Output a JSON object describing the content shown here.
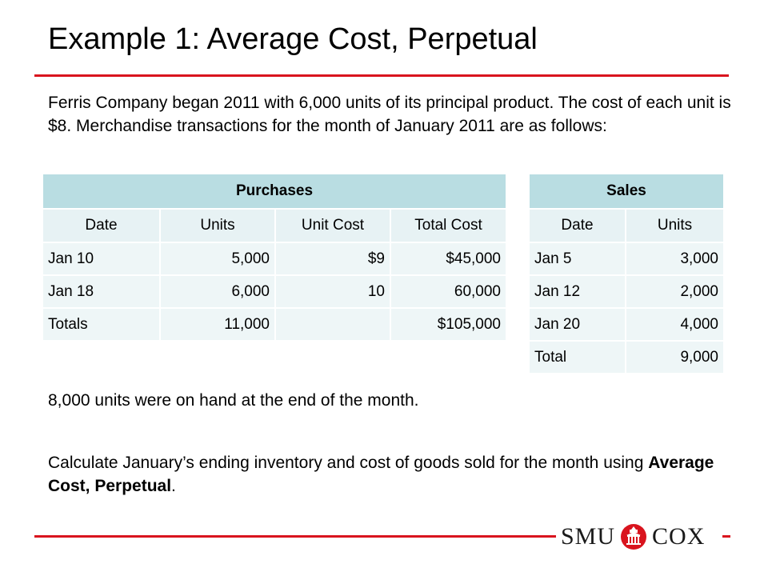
{
  "slide": {
    "title": "Example 1: Average Cost, Perpetual",
    "intro": "Ferris Company began 2011 with 6,000 units of its principal product. The cost of each unit is $8. Merchandise transactions for the month of January 2011 are as follows:",
    "on_hand_note": "8,000 units were on hand at the end of the month.",
    "calc_prefix": "Calculate January’s ending inventory and cost of goods sold for the month using ",
    "calc_bold": "Average Cost, Perpetual",
    "calc_suffix": "."
  },
  "purchases": {
    "caption": "Purchases",
    "headers": [
      "Date",
      "Units",
      "Unit Cost",
      "Total Cost"
    ],
    "rows": [
      [
        "Jan 10",
        "5,000",
        "$9",
        "$45,000"
      ],
      [
        "Jan 18",
        "6,000",
        "10",
        "60,000"
      ],
      [
        "Totals",
        "11,000",
        "",
        "$105,000"
      ]
    ]
  },
  "sales": {
    "caption": "Sales",
    "headers": [
      "Date",
      "Units"
    ],
    "rows": [
      [
        "Jan 5",
        "3,000"
      ],
      [
        "Jan 12",
        "2,000"
      ],
      [
        "Jan 20",
        "4,000"
      ],
      [
        "Total",
        "9,000"
      ]
    ]
  },
  "logo": {
    "left": "SMU",
    "right": "COX",
    "accent_color": "#d9141e"
  }
}
